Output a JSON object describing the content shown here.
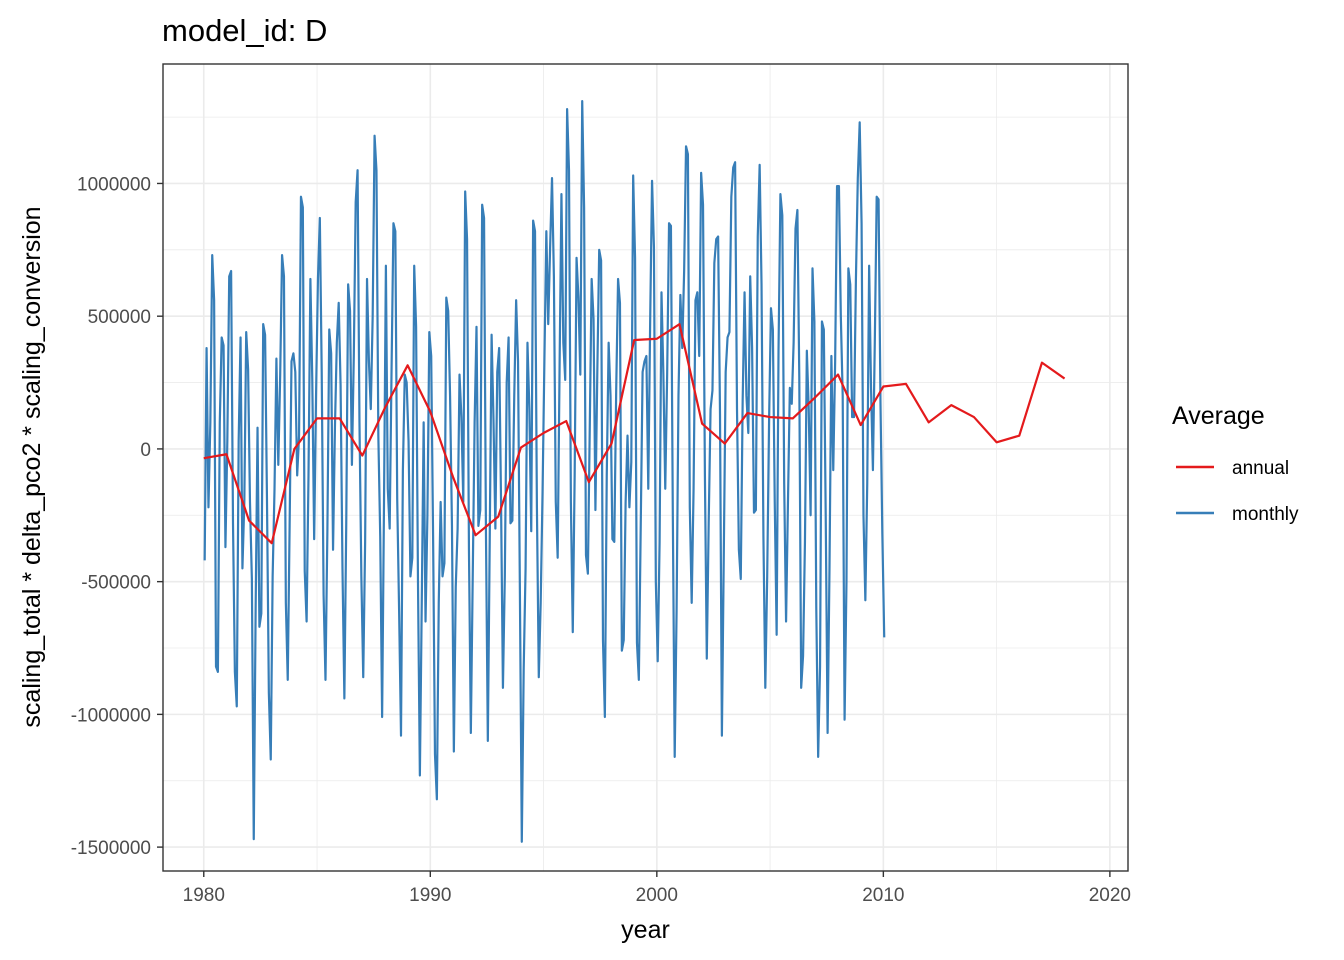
{
  "chart_data": {
    "type": "line",
    "title": "model_id: D",
    "xlabel": "year",
    "ylabel": "scaling_total * delta_pco2 * scaling_conversion",
    "xlim": [
      1978.2,
      2020.8
    ],
    "ylim": [
      -1590000,
      1450000
    ],
    "xticks": [
      1980,
      1990,
      2000,
      2010,
      2020
    ],
    "xtick_labels": [
      "1980",
      "1990",
      "2000",
      "2010",
      "2020"
    ],
    "yticks": [
      -1500000,
      -1000000,
      -500000,
      0,
      500000,
      1000000
    ],
    "ytick_labels": [
      "-1500000",
      "-1000000",
      "-500000",
      "0",
      "500000",
      "1000000"
    ],
    "grid": true,
    "legend": {
      "title": "Average",
      "position": "right",
      "entries": [
        {
          "label": "annual",
          "color": "#e41a1c"
        },
        {
          "label": "monthly",
          "color": "#377eb8"
        }
      ]
    },
    "series": [
      {
        "name": "annual",
        "color": "#e41a1c",
        "x": [
          1980,
          1981,
          1982,
          1983,
          1984,
          1985,
          1986,
          1987,
          1988,
          1989,
          1990,
          1991,
          1992,
          1993,
          1994,
          1995,
          1996,
          1997,
          1998,
          1999,
          2000,
          2001,
          2002,
          2003,
          2004,
          2005,
          2006,
          2007,
          2008,
          2009,
          2010,
          2011,
          2012,
          2013,
          2014,
          2015,
          2016,
          2017,
          2018
        ],
        "y": [
          -35000,
          -20000,
          -270000,
          -355000,
          0,
          115000,
          115000,
          -25000,
          155000,
          315000,
          140000,
          -105000,
          -325000,
          -255000,
          5000,
          60000,
          105000,
          -125000,
          20000,
          410000,
          415000,
          470000,
          95000,
          20000,
          135000,
          120000,
          115000,
          195000,
          280000,
          90000,
          235000,
          245000,
          100000,
          165000,
          120000,
          25000,
          50000,
          325000,
          265000
        ]
      },
      {
        "name": "monthly",
        "color": "#377eb8",
        "x_start": 1980.04,
        "x_step": 0.08333,
        "y": [
          -420000,
          380000,
          -220000,
          100000,
          730000,
          560000,
          -820000,
          -840000,
          100000,
          420000,
          390000,
          -370000,
          30000,
          650000,
          670000,
          -280000,
          -840000,
          -970000,
          30000,
          420000,
          -450000,
          -200000,
          440000,
          300000,
          -200000,
          -490000,
          -1470000,
          -600000,
          80000,
          -670000,
          -620000,
          470000,
          430000,
          -190000,
          -920000,
          -1170000,
          -480000,
          -150000,
          340000,
          -60000,
          280000,
          730000,
          650000,
          -580000,
          -870000,
          -290000,
          330000,
          360000,
          290000,
          -100000,
          50000,
          950000,
          910000,
          -460000,
          -650000,
          -100000,
          640000,
          260000,
          -340000,
          200000,
          640000,
          870000,
          290000,
          -550000,
          -870000,
          -310000,
          450000,
          360000,
          -380000,
          80000,
          400000,
          550000,
          240000,
          -450000,
          -940000,
          -280000,
          620000,
          520000,
          -60000,
          350000,
          930000,
          1050000,
          100000,
          -480000,
          -860000,
          -350000,
          640000,
          330000,
          150000,
          500000,
          1180000,
          1050000,
          50000,
          -330000,
          -1010000,
          -200000,
          690000,
          -150000,
          -300000,
          300000,
          850000,
          820000,
          -190000,
          -610000,
          -1080000,
          -80000,
          280000,
          250000,
          30000,
          -480000,
          -410000,
          690000,
          460000,
          -500000,
          -1230000,
          -580000,
          100000,
          -650000,
          -250000,
          440000,
          350000,
          -330000,
          -1150000,
          -1320000,
          -580000,
          -200000,
          -480000,
          -430000,
          570000,
          520000,
          200000,
          -290000,
          -1140000,
          -520000,
          -300000,
          280000,
          120000,
          -200000,
          970000,
          790000,
          -380000,
          -1070000,
          -480000,
          100000,
          460000,
          -290000,
          -230000,
          920000,
          870000,
          -310000,
          -1100000,
          -350000,
          430000,
          110000,
          -300000,
          290000,
          380000,
          -200000,
          -900000,
          -480000,
          250000,
          420000,
          -280000,
          -270000,
          200000,
          560000,
          330000,
          -550000,
          -1480000,
          -830000,
          -450000,
          400000,
          150000,
          -310000,
          860000,
          820000,
          -220000,
          -860000,
          -580000,
          -160000,
          350000,
          820000,
          470000,
          760000,
          1020000,
          650000,
          -200000,
          -410000,
          300000,
          960000,
          400000,
          260000,
          1280000,
          1050000,
          -200000,
          -690000,
          -100000,
          720000,
          570000,
          280000,
          1310000,
          910000,
          -400000,
          -470000,
          80000,
          640000,
          490000,
          -230000,
          290000,
          750000,
          710000,
          -720000,
          -1010000,
          -100000,
          400000,
          200000,
          -340000,
          -350000,
          220000,
          640000,
          550000,
          -760000,
          -720000,
          -200000,
          50000,
          -220000,
          -50000,
          1030000,
          720000,
          -730000,
          -870000,
          -290000,
          290000,
          330000,
          350000,
          -150000,
          480000,
          1010000,
          760000,
          -500000,
          -800000,
          -350000,
          590000,
          280000,
          -150000,
          280000,
          850000,
          840000,
          -250000,
          -1160000,
          -610000,
          200000,
          580000,
          380000,
          670000,
          1140000,
          1110000,
          -220000,
          -580000,
          -150000,
          560000,
          590000,
          350000,
          1040000,
          920000,
          -100000,
          -790000,
          -280000,
          150000,
          220000,
          700000,
          790000,
          800000,
          130000,
          -1080000,
          -400000,
          290000,
          420000,
          440000,
          950000,
          1060000,
          1080000,
          150000,
          -380000,
          -490000,
          180000,
          590000,
          200000,
          60000,
          650000,
          380000,
          -240000,
          -230000,
          800000,
          1070000,
          620000,
          -330000,
          -900000,
          -480000,
          110000,
          530000,
          450000,
          -200000,
          -700000,
          370000,
          960000,
          880000,
          -130000,
          -650000,
          -200000,
          230000,
          170000,
          400000,
          830000,
          900000,
          270000,
          -900000,
          -780000,
          -350000,
          370000,
          150000,
          -250000,
          680000,
          480000,
          -600000,
          -1160000,
          -820000,
          480000,
          450000,
          -250000,
          -1070000,
          -450000,
          350000,
          -80000,
          330000,
          990000,
          990000,
          500000,
          200000,
          -1020000,
          -500000,
          680000,
          620000,
          120000,
          120000,
          640000,
          1020000,
          1230000,
          850000,
          -250000,
          -570000,
          -130000,
          690000,
          230000,
          -80000,
          400000,
          950000,
          940000,
          180000,
          -320000,
          -710000
        ]
      }
    ]
  }
}
